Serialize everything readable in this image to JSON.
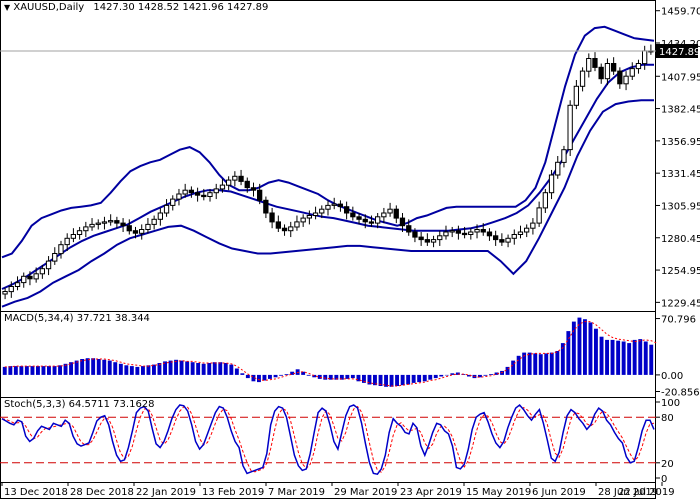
{
  "header": {
    "symbol": "XAUUSD,Daily",
    "ohlc": "1427.30 1428.52 1421.96 1427.89",
    "current_price": "1427.89"
  },
  "colors": {
    "candle": "#000000",
    "bands": "#0000a0",
    "macd_hist": "#0000c8",
    "macd_signal": "#ff0000",
    "stoch_main": "#0000c8",
    "stoch_signal": "#ff0000",
    "level_lines": "#d00000",
    "price_line": "#a0a0a0"
  },
  "chart_data": [
    {
      "type": "candlestick",
      "title": "XAUUSD,Daily",
      "ohlc_label": "1427.30 1428.52 1421.96 1427.89",
      "indicator": "Bollinger Bands",
      "y_ticks": [
        "1459.70",
        "1434.20",
        "1407.95",
        "1382.45",
        "1356.95",
        "1331.45",
        "1305.95",
        "1280.45",
        "1254.95",
        "1229.45"
      ],
      "ylim": [
        1225,
        1465
      ],
      "current_price": 1427.89,
      "x_ticks": [
        "13 Dec 2018",
        "28 Dec 2018",
        "22 Jan 2019",
        "13 Feb 2019",
        "7 Mar 2019",
        "29 Mar 2019",
        "23 Apr 2019",
        "15 May 2019",
        "6 Jun 2019",
        "28 Jun 2019",
        "22 Jul 2019"
      ],
      "close_series": [
        1238,
        1242,
        1245,
        1250,
        1248,
        1252,
        1256,
        1262,
        1268,
        1275,
        1280,
        1283,
        1286,
        1289,
        1291,
        1292,
        1293,
        1294,
        1292,
        1290,
        1286,
        1284,
        1287,
        1291,
        1295,
        1300,
        1306,
        1311,
        1315,
        1318,
        1316,
        1314,
        1313,
        1316,
        1319,
        1322,
        1326,
        1329,
        1325,
        1320,
        1318,
        1310,
        1300,
        1293,
        1288,
        1286,
        1289,
        1293,
        1296,
        1298,
        1300,
        1303,
        1306,
        1307,
        1305,
        1300,
        1297,
        1295,
        1293,
        1292,
        1297,
        1300,
        1303,
        1296,
        1290,
        1285,
        1281,
        1279,
        1277,
        1279,
        1282,
        1285,
        1286,
        1284,
        1283,
        1285,
        1287,
        1285,
        1282,
        1279,
        1277,
        1280,
        1283,
        1285,
        1288,
        1292,
        1304,
        1316,
        1330,
        1340,
        1350,
        1385,
        1400,
        1412,
        1422,
        1415,
        1406,
        1418,
        1412,
        1402,
        1408,
        1414,
        1418,
        1428,
        1427.89
      ],
      "upper_band": [
        1265,
        1268,
        1278,
        1290,
        1296,
        1299,
        1302,
        1304,
        1305,
        1306,
        1308,
        1316,
        1325,
        1333,
        1337,
        1340,
        1342,
        1346,
        1350,
        1352,
        1348,
        1340,
        1330,
        1322,
        1318,
        1318,
        1320,
        1324,
        1326,
        1324,
        1321,
        1318,
        1315,
        1310,
        1306,
        1303,
        1300,
        1297,
        1294,
        1292,
        1290,
        1292,
        1296,
        1298,
        1301,
        1304,
        1305,
        1305,
        1305,
        1305,
        1305,
        1305,
        1305,
        1310,
        1320,
        1340,
        1370,
        1400,
        1425,
        1440,
        1446,
        1447,
        1444,
        1441,
        1438,
        1437,
        1436
      ],
      "middle_band": [
        1240,
        1244,
        1249,
        1255,
        1261,
        1267,
        1273,
        1278,
        1282,
        1285,
        1288,
        1291,
        1296,
        1301,
        1305,
        1309,
        1313,
        1316,
        1318,
        1318,
        1317,
        1314,
        1311,
        1308,
        1305,
        1303,
        1301,
        1299,
        1297,
        1296,
        1294,
        1292,
        1290,
        1289,
        1288,
        1287,
        1286,
        1286,
        1286,
        1286,
        1287,
        1288,
        1290,
        1293,
        1296,
        1300,
        1306,
        1316,
        1328,
        1342,
        1358,
        1374,
        1390,
        1403,
        1411,
        1415,
        1417,
        1417
      ],
      "lower_band": [
        1226,
        1230,
        1233,
        1238,
        1245,
        1250,
        1255,
        1262,
        1268,
        1275,
        1280,
        1283,
        1286,
        1289,
        1290,
        1286,
        1281,
        1276,
        1272,
        1270,
        1268,
        1268,
        1269,
        1270,
        1271,
        1272,
        1273,
        1274,
        1274,
        1273,
        1272,
        1271,
        1270,
        1270,
        1270,
        1270,
        1270,
        1270,
        1270,
        1262,
        1252,
        1262,
        1280,
        1300,
        1320,
        1345,
        1365,
        1380,
        1386,
        1388,
        1389,
        1389
      ]
    },
    {
      "type": "bar",
      "title": "MACD(5,34,4) 37.721 38.344",
      "y_ticks": [
        "70.796",
        "0.00",
        "-20.856"
      ],
      "ylim": [
        -24,
        74
      ],
      "histogram": [
        10,
        11,
        11,
        11,
        11,
        11,
        11,
        11,
        11,
        11,
        12,
        14,
        16,
        18,
        20,
        21,
        21,
        20,
        19,
        18,
        16,
        14,
        12,
        11,
        10,
        11,
        12,
        13,
        15,
        17,
        18,
        19,
        18,
        17,
        16,
        15,
        14,
        15,
        16,
        16,
        15,
        13,
        8,
        2,
        -4,
        -8,
        -9,
        -7,
        -5,
        -3,
        -1,
        1,
        4,
        7,
        4,
        -1,
        -3,
        -5,
        -6,
        -6,
        -6,
        -6,
        -5,
        -4,
        -8,
        -10,
        -12,
        -13,
        -14,
        -15,
        -15,
        -14,
        -13,
        -12,
        -10,
        -9,
        -8,
        -6,
        -4,
        -2,
        0,
        2,
        3,
        1,
        -2,
        -4,
        -3,
        -1,
        1,
        3,
        5,
        10,
        18,
        24,
        28,
        28,
        27,
        26,
        27,
        28,
        30,
        40,
        55,
        67,
        72,
        70,
        66,
        58,
        48,
        44,
        44,
        43,
        42,
        40,
        44,
        45,
        42,
        38
      ],
      "signal": [
        10,
        10,
        11,
        11,
        11,
        11,
        11,
        11,
        11,
        11,
        11,
        12,
        14,
        16,
        18,
        19,
        20,
        20,
        20,
        19,
        18,
        16,
        14,
        13,
        12,
        11,
        11,
        12,
        13,
        15,
        16,
        17,
        18,
        17,
        17,
        16,
        15,
        15,
        15,
        15,
        15,
        14,
        11,
        6,
        1,
        -3,
        -6,
        -7,
        -6,
        -5,
        -3,
        -1,
        1,
        3,
        4,
        2,
        -1,
        -3,
        -4,
        -5,
        -5,
        -5,
        -5,
        -5,
        -6,
        -8,
        -10,
        -11,
        -12,
        -13,
        -14,
        -14,
        -13,
        -12,
        -11,
        -10,
        -9,
        -7,
        -6,
        -4,
        -2,
        0,
        1,
        1,
        0,
        -2,
        -3,
        -2,
        -1,
        1,
        3,
        7,
        13,
        19,
        24,
        26,
        27,
        27,
        27,
        27,
        29,
        34,
        45,
        56,
        64,
        67,
        67,
        63,
        57,
        51,
        47,
        45,
        44,
        43,
        42,
        43,
        44,
        43,
        40
      ]
    },
    {
      "type": "line",
      "title": "Stoch(5,3,3) 64.5711 73.1628",
      "y_ticks": [
        "100",
        "80",
        "20",
        "0"
      ],
      "ylim": [
        0,
        100
      ],
      "levels": [
        80,
        20
      ],
      "main": [
        78,
        75,
        72,
        70,
        76,
        74,
        55,
        48,
        52,
        62,
        68,
        66,
        64,
        72,
        70,
        68,
        76,
        72,
        55,
        45,
        42,
        44,
        46,
        60,
        75,
        80,
        82,
        70,
        48,
        30,
        22,
        24,
        40,
        62,
        86,
        92,
        94,
        88,
        65,
        45,
        40,
        48,
        62,
        78,
        90,
        96,
        95,
        88,
        70,
        48,
        38,
        44,
        58,
        72,
        86,
        94,
        92,
        80,
        62,
        48,
        40,
        16,
        6,
        8,
        10,
        12,
        14,
        32,
        70,
        88,
        94,
        92,
        80,
        55,
        30,
        16,
        10,
        12,
        32,
        60,
        86,
        92,
        88,
        70,
        48,
        38,
        60,
        82,
        94,
        96,
        92,
        72,
        45,
        20,
        6,
        5,
        12,
        30,
        60,
        78,
        72,
        68,
        60,
        58,
        72,
        66,
        42,
        30,
        44,
        60,
        72,
        70,
        62,
        58,
        42,
        14,
        12,
        18,
        38,
        64,
        80,
        84,
        86,
        74,
        58,
        46,
        40,
        48,
        66,
        80,
        92,
        96,
        90,
        82,
        76,
        84,
        90,
        72,
        50,
        26,
        22,
        34,
        60,
        82,
        90,
        86,
        78,
        72,
        64,
        70,
        84,
        92,
        88,
        76,
        70,
        60,
        52,
        46,
        28,
        20,
        22,
        40,
        62,
        76,
        76,
        64
      ]
    }
  ]
}
